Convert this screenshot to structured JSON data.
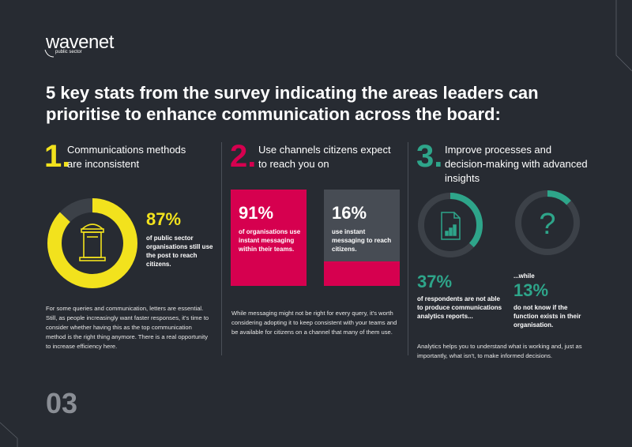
{
  "logo": {
    "word": "wavenet",
    "sub": "public sector"
  },
  "title": "5 key stats from the survey indicating the areas leaders can prioritise to enhance communication across the board:",
  "colors": {
    "yellow": "#f2e21d",
    "pink": "#d6004f",
    "green": "#2ea58a",
    "grey_card": "#474c54",
    "track": "#3c4148"
  },
  "col1": {
    "number": "1.",
    "heading": "Communications methods are inconsistent",
    "stat": "87%",
    "stat_text": "of public sector organisations still use the post to reach citizens.",
    "stat_fraction": 0.87,
    "icon": "postbox-icon",
    "body": "For some queries and communication, letters are essential. Still, as people increasingly want faster responses, it's time to consider whether having this as the top communication method is the right thing anymore. There is a real opportunity to increase efficiency here."
  },
  "col2": {
    "number": "2.",
    "heading": "Use channels citizens expect to reach you on",
    "card1": {
      "stat": "91%",
      "text": "of organisations use instant messaging within their teams.",
      "fraction": 0.91
    },
    "card2": {
      "stat": "16%",
      "text": "use instant messaging to reach citizens.",
      "fraction": 0.16
    },
    "body": "While messaging might not be right for every query, it's worth considering adopting it to keep consistent with your teams and be available for citizens on a channel that many of them use."
  },
  "col3": {
    "number": "3.",
    "heading": "Improve processes and decision-making with advanced insights",
    "stat1": {
      "stat": "37%",
      "text": "of respondents are not able to produce communications analytics reports...",
      "fraction": 0.37,
      "icon": "report-chart-icon"
    },
    "stat2": {
      "prefix": "...while",
      "stat": "13%",
      "text": "do not know if the function exists in their organisation.",
      "fraction": 0.13,
      "icon": "question-mark-icon"
    },
    "body": "Analytics helps you to understand what is working and, just as importantly, what isn't, to make informed decisions."
  },
  "page_number": "03"
}
